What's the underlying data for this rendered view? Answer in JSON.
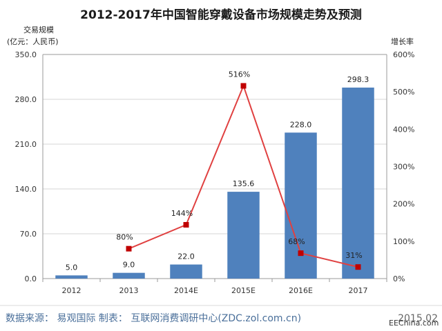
{
  "chart_data": {
    "type": "bar+line",
    "title": "2012-2017年中国智能穿戴设备市场规模走势及预测",
    "ylabel_left_line1": "交易规模",
    "ylabel_left_line2": "(亿元：人民币)",
    "ylabel_right": "增长率",
    "categories": [
      "2012",
      "2013",
      "2014E",
      "2015E",
      "2016E",
      "2017"
    ],
    "bar_series": {
      "name": "交易规模",
      "values": [
        5.0,
        9.0,
        22.0,
        135.6,
        228.0,
        298.3
      ],
      "labels": [
        "5.0",
        "9.0",
        "22.0",
        "135.6",
        "228.0",
        "298.3"
      ],
      "color": "#4f81bd"
    },
    "line_series": {
      "name": "增长率",
      "points": [
        {
          "category": "2013",
          "value": 80,
          "label": "80%"
        },
        {
          "category": "2014E",
          "value": 144,
          "label": "144%"
        },
        {
          "category": "2015E",
          "value": 516,
          "label": "516%"
        },
        {
          "category": "2016E",
          "value": 68,
          "label": "68%"
        },
        {
          "category": "2017",
          "value": 31,
          "label": "31%"
        }
      ],
      "line_color": "#e04040",
      "marker_color": "#c00000"
    },
    "ylim_left": [
      0,
      350
    ],
    "yticks_left": [
      "0.0",
      "70.0",
      "140.0",
      "210.0",
      "280.0",
      "350.0"
    ],
    "ylim_right": [
      0,
      600
    ],
    "yticks_right": [
      "0%",
      "100%",
      "200%",
      "300%",
      "400%",
      "500%",
      "600%"
    ]
  },
  "footer": {
    "source": "数据来源：  易观国际   制表：  互联网消费调研中心(ZDC.zol.com.cn)",
    "date": "2015.02",
    "watermark": "EEChina.com"
  }
}
